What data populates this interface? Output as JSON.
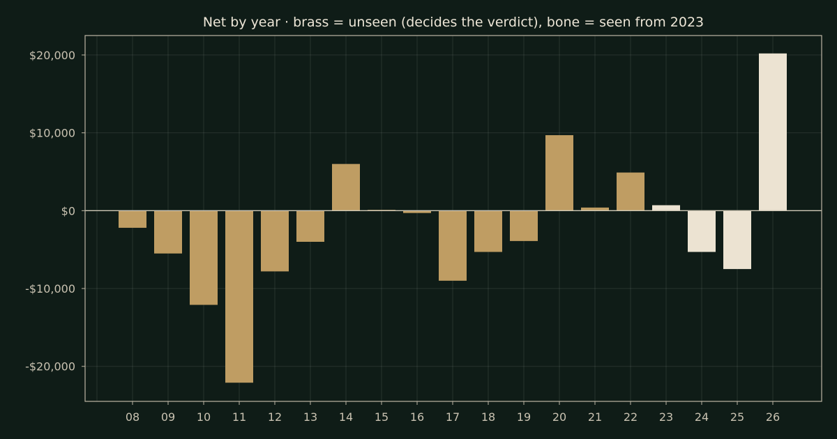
{
  "chart_data": {
    "type": "bar",
    "title": "Net by year  ·  brass = unseen (decides the verdict), bone = seen from 2023",
    "xlabel": "",
    "ylabel": "",
    "categories": [
      "08",
      "09",
      "10",
      "11",
      "12",
      "13",
      "14",
      "15",
      "16",
      "17",
      "18",
      "19",
      "20",
      "21",
      "22",
      "23",
      "24",
      "25",
      "26"
    ],
    "values": [
      -2200,
      -5500,
      -12100,
      -22100,
      -7800,
      -4000,
      6000,
      100,
      -300,
      -9000,
      -5300,
      -3900,
      9700,
      400,
      4900,
      700,
      -5300,
      -7500,
      20200
    ],
    "groups": [
      "unseen",
      "unseen",
      "unseen",
      "unseen",
      "unseen",
      "unseen",
      "unseen",
      "unseen",
      "unseen",
      "unseen",
      "unseen",
      "unseen",
      "unseen",
      "unseen",
      "unseen",
      "seen",
      "seen",
      "seen",
      "seen"
    ],
    "group_colors": {
      "unseen": "#bf9d63",
      "seen": "#ece3d2"
    },
    "ylim": [
      -24500,
      22500
    ],
    "yticks": [
      20000,
      10000,
      0,
      -10000,
      -20000
    ],
    "ytick_labels": [
      "$20,000",
      "$10,000",
      "$0",
      "-$10,000",
      "-$20,000"
    ],
    "grid": true,
    "legend": "none",
    "colors": {
      "background": "#0f1c17",
      "frame": "#bdb6a4",
      "text": "#c9c2b1",
      "title": "#ece5d6"
    }
  }
}
